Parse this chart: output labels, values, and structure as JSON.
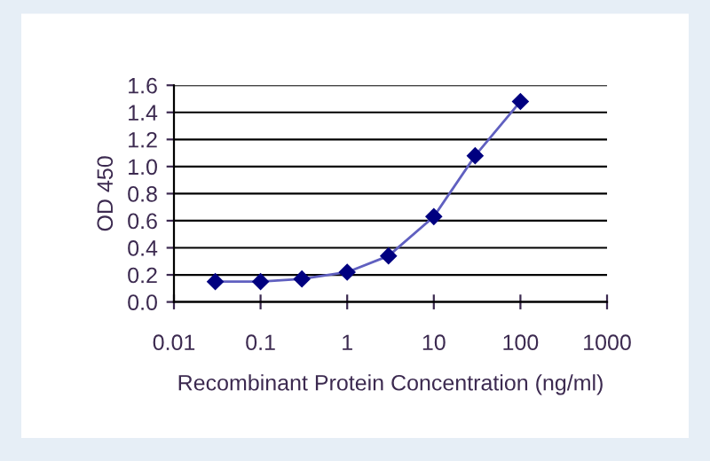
{
  "chart_data": {
    "type": "line",
    "xlabel": "Recombinant Protein Concentration (ng/ml)",
    "ylabel": "OD 450",
    "x": [
      0.03,
      0.1,
      0.3,
      1,
      3,
      10,
      30,
      100
    ],
    "series": [
      {
        "color": "#000080",
        "values": [
          0.15,
          0.15,
          0.17,
          0.22,
          0.34,
          0.63,
          1.08,
          1.48
        ]
      }
    ],
    "log": "x",
    "xlim": [
      0.01,
      1000
    ],
    "xticks": [
      0.01,
      0.1,
      1,
      10,
      100,
      1000
    ],
    "ylim": [
      0,
      1.6
    ],
    "yticks": [
      {
        "value": 0,
        "label": "0.0"
      },
      {
        "value": 0.2,
        "label": "0.2"
      },
      {
        "value": 0.4,
        "label": "0.4"
      },
      {
        "value": 0.6,
        "label": "0.6"
      },
      {
        "value": 0.8,
        "label": "0.8"
      },
      {
        "value": 1.0,
        "label": "1.0"
      },
      {
        "value": 1.2,
        "label": "1.2"
      },
      {
        "value": 1.4,
        "label": "1.4"
      },
      {
        "value": 1.6,
        "label": "1.6"
      }
    ],
    "grid": "y",
    "marker": "diamond",
    "line_style": "solid",
    "legend": false
  }
}
